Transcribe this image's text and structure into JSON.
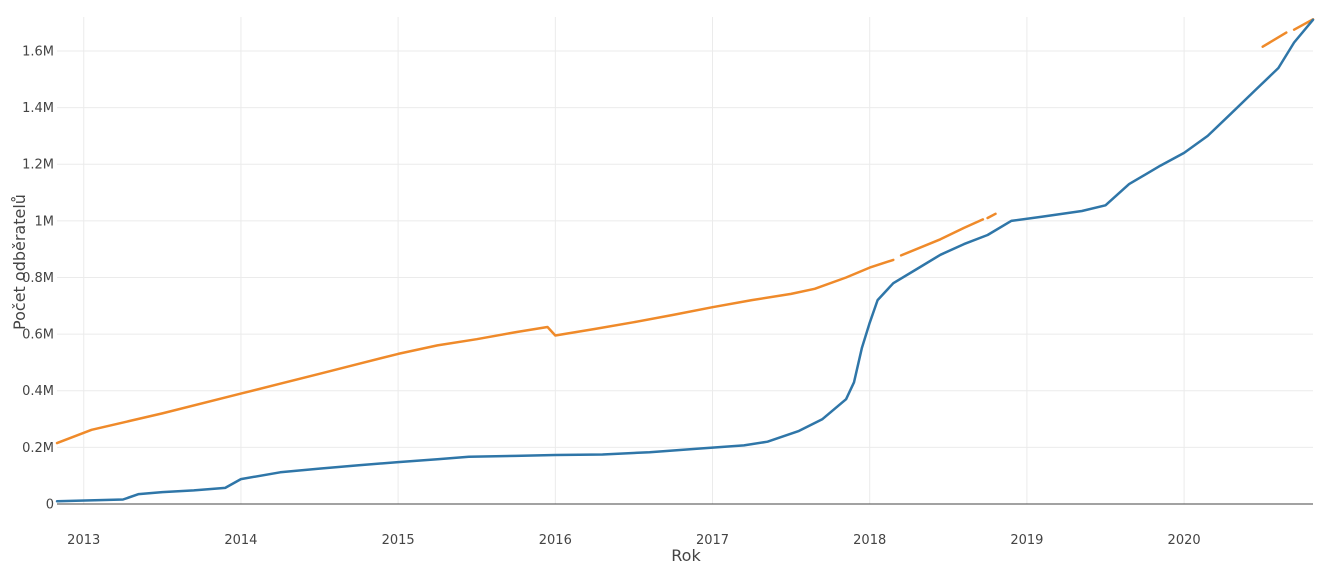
{
  "chart_data": {
    "type": "line",
    "title": "",
    "xlabel": "Rok",
    "ylabel": "Počet odběratelů",
    "xlim": [
      2012.83,
      2020.82
    ],
    "ylim": [
      0,
      1720000
    ],
    "grid": true,
    "x_ticks": [
      2013,
      2014,
      2015,
      2016,
      2017,
      2018,
      2019,
      2020
    ],
    "x_tick_labels": [
      "2013",
      "2014",
      "2015",
      "2016",
      "2017",
      "2018",
      "2019",
      "2020"
    ],
    "y_ticks": [
      0,
      200000,
      400000,
      600000,
      800000,
      1000000,
      1200000,
      1400000,
      1600000
    ],
    "y_tick_labels": [
      "0",
      "0.2M",
      "0.4M",
      "0.6M",
      "0.8M",
      "1M",
      "1.2M",
      "1.4M",
      "1.6M"
    ],
    "colors": {
      "blue": "#2f76a8",
      "orange": "#ef8a2a"
    },
    "series": [
      {
        "color": "#2f76a8",
        "segments": [
          [
            [
              2012.83,
              10000
            ],
            [
              2013.25,
              16000
            ],
            [
              2013.35,
              35000
            ],
            [
              2013.5,
              42000
            ],
            [
              2013.7,
              48000
            ],
            [
              2013.9,
              57000
            ],
            [
              2014.0,
              88000
            ],
            [
              2014.25,
              112000
            ],
            [
              2014.5,
              125000
            ],
            [
              2014.75,
              137000
            ],
            [
              2015.0,
              148000
            ],
            [
              2015.25,
              158000
            ],
            [
              2015.45,
              167000
            ],
            [
              2015.75,
              170000
            ],
            [
              2016.0,
              173000
            ],
            [
              2016.3,
              175000
            ],
            [
              2016.6,
              183000
            ],
            [
              2016.9,
              195000
            ],
            [
              2017.2,
              207000
            ],
            [
              2017.35,
              220000
            ],
            [
              2017.55,
              258000
            ],
            [
              2017.7,
              300000
            ],
            [
              2017.85,
              370000
            ],
            [
              2017.9,
              430000
            ],
            [
              2017.95,
              550000
            ],
            [
              2018.0,
              640000
            ],
            [
              2018.05,
              720000
            ],
            [
              2018.15,
              780000
            ],
            [
              2018.3,
              830000
            ],
            [
              2018.45,
              880000
            ],
            [
              2018.6,
              918000
            ],
            [
              2018.75,
              950000
            ],
            [
              2018.9,
              1000000
            ],
            [
              2019.1,
              1015000
            ],
            [
              2019.35,
              1035000
            ],
            [
              2019.5,
              1055000
            ],
            [
              2019.65,
              1130000
            ],
            [
              2019.85,
              1195000
            ],
            [
              2020.0,
              1240000
            ],
            [
              2020.15,
              1300000
            ],
            [
              2020.3,
              1380000
            ],
            [
              2020.45,
              1460000
            ],
            [
              2020.6,
              1540000
            ],
            [
              2020.7,
              1630000
            ],
            [
              2020.82,
              1710000
            ]
          ]
        ]
      },
      {
        "color": "#ef8a2a",
        "segments": [
          [
            [
              2012.83,
              215000
            ],
            [
              2013.05,
              262000
            ],
            [
              2013.5,
              320000
            ],
            [
              2014.0,
              390000
            ],
            [
              2014.25,
              425000
            ],
            [
              2014.5,
              460000
            ],
            [
              2014.75,
              495000
            ],
            [
              2015.0,
              530000
            ],
            [
              2015.25,
              560000
            ],
            [
              2015.5,
              582000
            ],
            [
              2015.75,
              607000
            ],
            [
              2015.95,
              625000
            ],
            [
              2016.0,
              595000
            ],
            [
              2016.25,
              618000
            ],
            [
              2016.5,
              642000
            ],
            [
              2016.75,
              668000
            ],
            [
              2017.0,
              695000
            ],
            [
              2017.25,
              720000
            ],
            [
              2017.5,
              742000
            ],
            [
              2017.65,
              760000
            ],
            [
              2017.85,
              800000
            ],
            [
              2018.0,
              835000
            ],
            [
              2018.15,
              862000
            ]
          ],
          [
            [
              2018.2,
              878000
            ],
            [
              2018.45,
              935000
            ],
            [
              2018.6,
              975000
            ],
            [
              2018.72,
              1005000
            ]
          ],
          [
            [
              2018.75,
              1010000
            ],
            [
              2018.8,
              1025000
            ]
          ],
          [
            [
              2020.5,
              1615000
            ],
            [
              2020.65,
              1665000
            ]
          ],
          [
            [
              2020.7,
              1675000
            ],
            [
              2020.82,
              1712000
            ]
          ]
        ]
      }
    ]
  }
}
